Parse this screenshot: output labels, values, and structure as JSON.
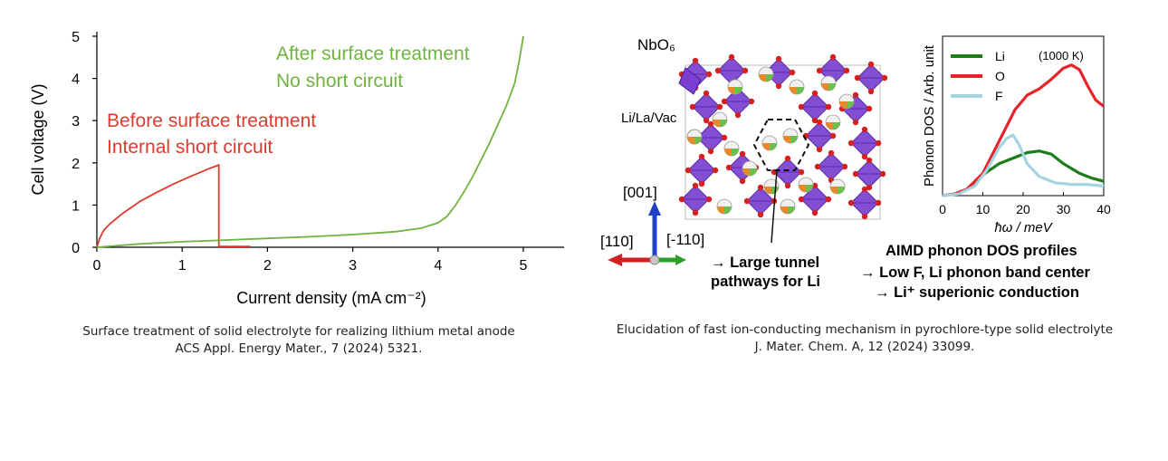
{
  "chart_data": [
    {
      "type": "line",
      "xlabel": "Current density (mA cm⁻²)",
      "ylabel": "Cell voltage (V)",
      "xlim": [
        0,
        5.5
      ],
      "ylim": [
        0,
        5
      ],
      "xticks": [
        "0",
        "1",
        "2",
        "3",
        "4",
        "5"
      ],
      "yticks": [
        "0",
        "1",
        "2",
        "3",
        "4",
        "5"
      ],
      "grid": false,
      "series": [
        {
          "color": "#e03a2e",
          "x": [
            0,
            0.03,
            0.08,
            0.15,
            0.3,
            0.5,
            0.7,
            0.9,
            1.1,
            1.3,
            1.43,
            1.43,
            1.5,
            1.8
          ],
          "y": [
            0,
            0.2,
            0.4,
            0.55,
            0.8,
            1.08,
            1.3,
            1.5,
            1.68,
            1.85,
            1.95,
            0.02,
            0.02,
            0.02
          ]
        },
        {
          "color": "#6fb43f",
          "x": [
            0,
            0.5,
            1.0,
            1.5,
            2.0,
            2.5,
            3.0,
            3.5,
            3.8,
            4.0,
            4.1,
            4.2,
            4.3,
            4.4,
            4.5,
            4.6,
            4.7,
            4.8,
            4.9,
            4.95,
            5.0
          ],
          "y": [
            0,
            0.08,
            0.13,
            0.17,
            0.21,
            0.25,
            0.3,
            0.37,
            0.45,
            0.58,
            0.72,
            0.98,
            1.3,
            1.65,
            2.05,
            2.45,
            2.9,
            3.35,
            3.9,
            4.4,
            5.0
          ]
        }
      ],
      "annotations": [
        {
          "text": "After surface treatment",
          "color": "#6fb43f"
        },
        {
          "text": "No short circuit",
          "color": "#6fb43f"
        },
        {
          "text": "Before surface treatment",
          "color": "#e03a2e"
        },
        {
          "text": "Internal short circuit",
          "color": "#e03a2e"
        }
      ]
    },
    {
      "type": "line",
      "xlabel": "ħω / meV",
      "ylabel": "Phonon DOS / Arb. unit",
      "xlim": [
        0,
        40
      ],
      "xticks": [
        "0",
        "10",
        "20",
        "30",
        "40"
      ],
      "ylim": [
        0,
        1
      ],
      "legend": "top-left",
      "annotation": "(1000 K)",
      "series": [
        {
          "name": "Li",
          "color": "#1a7d1a",
          "x": [
            0,
            3,
            6,
            10,
            14,
            18,
            21,
            24,
            27,
            30,
            34,
            37,
            40
          ],
          "y": [
            0,
            0.01,
            0.04,
            0.13,
            0.2,
            0.24,
            0.27,
            0.28,
            0.26,
            0.2,
            0.14,
            0.11,
            0.09
          ]
        },
        {
          "name": "O",
          "color": "#e8232a",
          "x": [
            0,
            3,
            6,
            10,
            14,
            18,
            21,
            24,
            27,
            30,
            32,
            34,
            36,
            38,
            40
          ],
          "y": [
            0,
            0.01,
            0.04,
            0.14,
            0.34,
            0.54,
            0.63,
            0.67,
            0.73,
            0.8,
            0.82,
            0.79,
            0.69,
            0.6,
            0.56
          ]
        },
        {
          "name": "F",
          "color": "#a5d4e0",
          "x": [
            0,
            4,
            8,
            11,
            14,
            16,
            17.5,
            19,
            21,
            24,
            28,
            32,
            36,
            40
          ],
          "y": [
            0,
            0.01,
            0.06,
            0.16,
            0.3,
            0.36,
            0.38,
            0.32,
            0.2,
            0.12,
            0.08,
            0.07,
            0.07,
            0.06
          ]
        }
      ]
    }
  ],
  "structure": {
    "label_nbo6": "NbO₆",
    "label_lila": "Li/La/Vac",
    "axis_001": "[001]",
    "axis_110": "[110]",
    "axis_m110": "[-110]",
    "tunnel_line1": "→ Large tunnel",
    "tunnel_line2": "pathways for Li",
    "aimd_line1": "AIMD phonon DOS profiles",
    "aimd_line2": "→  Low F, Li phonon band center",
    "aimd_line3": "→  Li⁺ superionic conduction"
  },
  "captions": {
    "left_line1": "Surface treatment of solid electrolyte for realizing lithium metal anode",
    "left_line2": "ACS Appl. Energy Mater., 7 (2024) 5321.",
    "right_line1": "Elucidation of fast ion-conducting mechanism in pyrochlore-type solid electrolyte",
    "right_line2": "J. Mater. Chem. A, 12 (2024) 33099."
  },
  "colors": {
    "nbo6_polyhedron": "#7a3fd0",
    "oxygen": "#d42020",
    "axis_red": "#d42020",
    "axis_green": "#2aa02a",
    "axis_blue": "#2040c8"
  }
}
